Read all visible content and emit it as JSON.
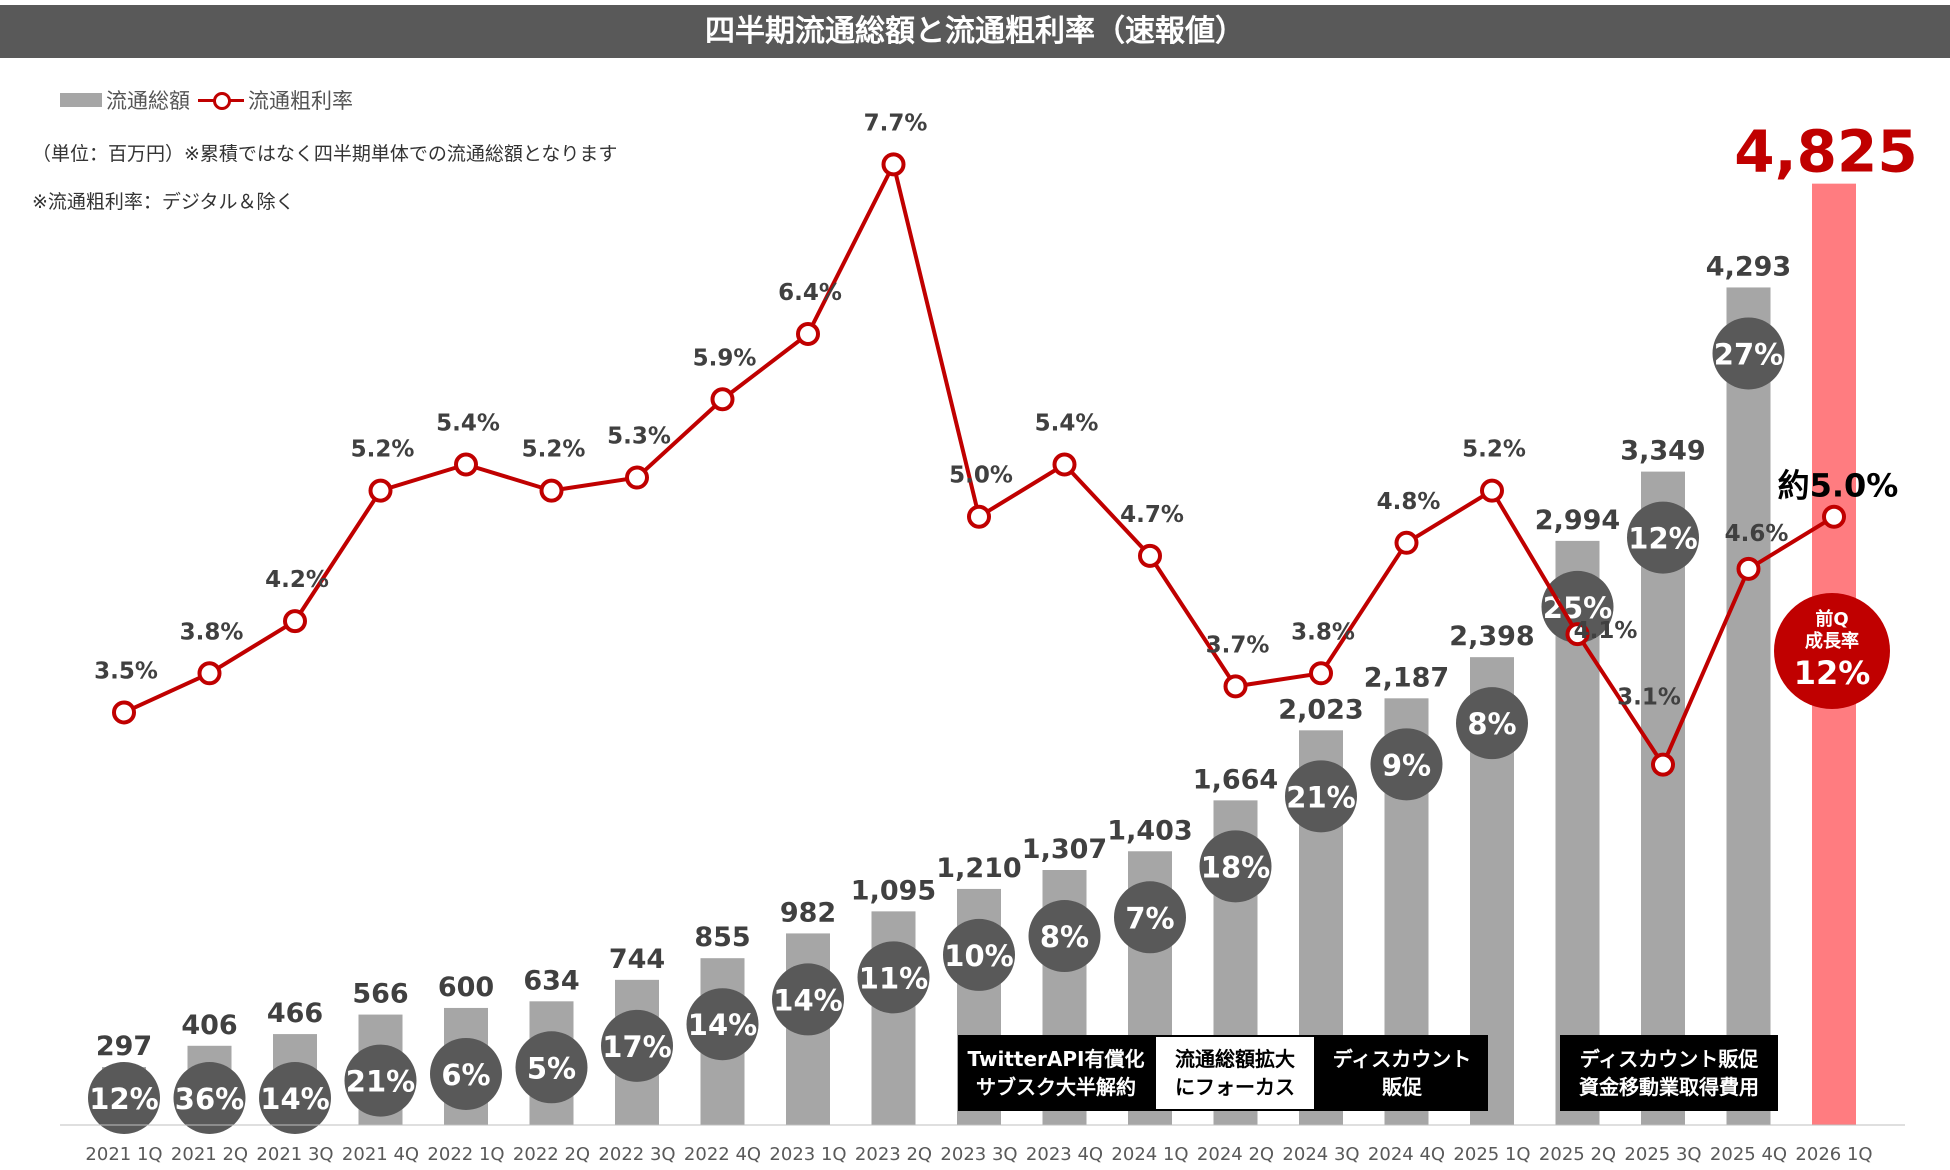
{
  "title": "四半期流通総額と流通粗利率（速報値）",
  "legend": {
    "bar_label": "流通総額",
    "line_label": "流通粗利率"
  },
  "notes": {
    "unit": "（単位：百万円）※累積ではなく四半期単体での流通総額となります",
    "margin_note": "※流通粗利率：デジタル＆除く"
  },
  "annotations": {
    "box1": [
      "TwitterAPI有償化",
      "サブスク大半解約"
    ],
    "box2": [
      "流通総額拡大",
      "にフォーカス"
    ],
    "box3": [
      "ディスカウント",
      "販促"
    ],
    "box4": [
      "ディスカウント販促",
      "資金移動業取得費用"
    ],
    "badge": {
      "line1": "前Q",
      "line2": "成長率",
      "value": "12%"
    }
  },
  "colors": {
    "bar": "#a6a6a6",
    "bar_highlight": "#ff7c80",
    "line": "#c00000",
    "growth_circle": "#595959",
    "highlight_text": "#c00000",
    "title_bg": "#595959"
  },
  "chart_data": {
    "type": "bar",
    "categories": [
      "2021 1Q",
      "2021 2Q",
      "2021 3Q",
      "2021 4Q",
      "2022 1Q",
      "2022 2Q",
      "2022 3Q",
      "2022 4Q",
      "2023 1Q",
      "2023 2Q",
      "2023 3Q",
      "2023 4Q",
      "2024 1Q",
      "2024 2Q",
      "2024 3Q",
      "2024 4Q",
      "2025 1Q",
      "2025 2Q",
      "2025 3Q",
      "2025 4Q",
      "2026 1Q"
    ],
    "series": [
      {
        "name": "流通総額",
        "type": "bar",
        "values": [
          297,
          406,
          466,
          566,
          600,
          634,
          744,
          855,
          982,
          1095,
          1210,
          1307,
          1403,
          1664,
          2023,
          2187,
          2398,
          2994,
          3349,
          4293,
          4825
        ],
        "labels": [
          "297",
          "406",
          "466",
          "566",
          "600",
          "634",
          "744",
          "855",
          "982",
          "1,095",
          "1,210",
          "1,307",
          "1,403",
          "1,664",
          "2,023",
          "2,187",
          "2,398",
          "2,994",
          "3,349",
          "4,293",
          "4,825"
        ]
      },
      {
        "name": "流通粗利率",
        "type": "line",
        "values": [
          3.5,
          3.8,
          4.2,
          5.2,
          5.4,
          5.2,
          5.3,
          5.9,
          6.4,
          7.7,
          5.0,
          5.4,
          4.7,
          3.7,
          3.8,
          4.8,
          5.2,
          4.1,
          3.1,
          4.6,
          5.0
        ],
        "labels": [
          "3.5%",
          "3.8%",
          "4.2%",
          "5.2%",
          "5.4%",
          "5.2%",
          "5.3%",
          "5.9%",
          "6.4%",
          "7.7%",
          "5.0%",
          "5.4%",
          "4.7%",
          "3.7%",
          "3.8%",
          "4.8%",
          "5.2%",
          "4.1%",
          "3.1%",
          "4.6%",
          "約5.0%"
        ]
      }
    ],
    "growth_rates": [
      "12%",
      "36%",
      "14%",
      "21%",
      "6%",
      "5%",
      "17%",
      "14%",
      "14%",
      "11%",
      "10%",
      "8%",
      "7%",
      "18%",
      "21%",
      "9%",
      "8%",
      "25%",
      "12%",
      "27%"
    ],
    "ylim_bar": [
      0,
      5100
    ],
    "ylim_line": [
      0.3,
      8.5
    ],
    "grid": false,
    "legend_position": "top-left"
  }
}
